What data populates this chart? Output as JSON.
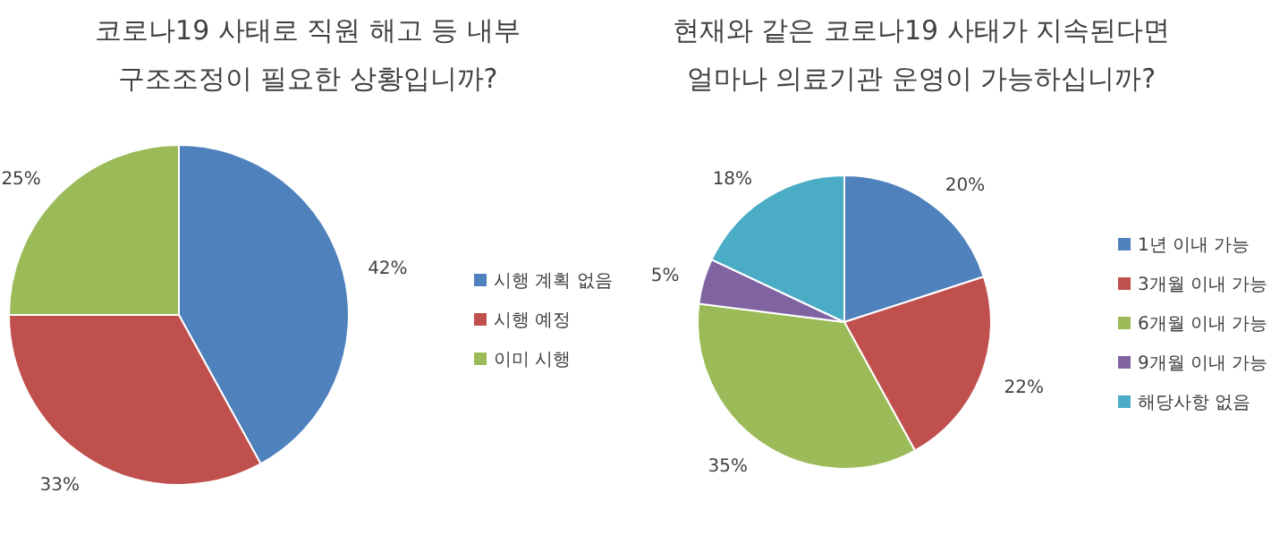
{
  "chart_data": [
    {
      "type": "pie",
      "title": "코로나19 사태로 직원 해고 등 내부\n구조조정이 필요한 상황입니까?",
      "categories": [
        "시행 계획 없음",
        "시행 예정",
        "이미 시행"
      ],
      "values": [
        42,
        33,
        25
      ],
      "value_labels": [
        "42%",
        "33%",
        "25%"
      ],
      "colors": [
        "#4f81bd",
        "#c0504d",
        "#9bbb59"
      ],
      "legend": "right"
    },
    {
      "type": "pie",
      "title": "현재와 같은 코로나19 사태가 지속된다면\n얼마나 의료기관 운영이 가능하십니까?",
      "categories": [
        "1년 이내 가능",
        "3개월 이내 가능",
        "6개월 이내 가능",
        "9개월 이내 가능",
        "해당사항 없음"
      ],
      "values": [
        20,
        22,
        35,
        5,
        18
      ],
      "value_labels": [
        "20%",
        "22%",
        "35%",
        "5%",
        "18%"
      ],
      "colors": [
        "#4f81bd",
        "#c0504d",
        "#9bbb59",
        "#8064a2",
        "#4bacc6"
      ],
      "legend": "right"
    }
  ]
}
